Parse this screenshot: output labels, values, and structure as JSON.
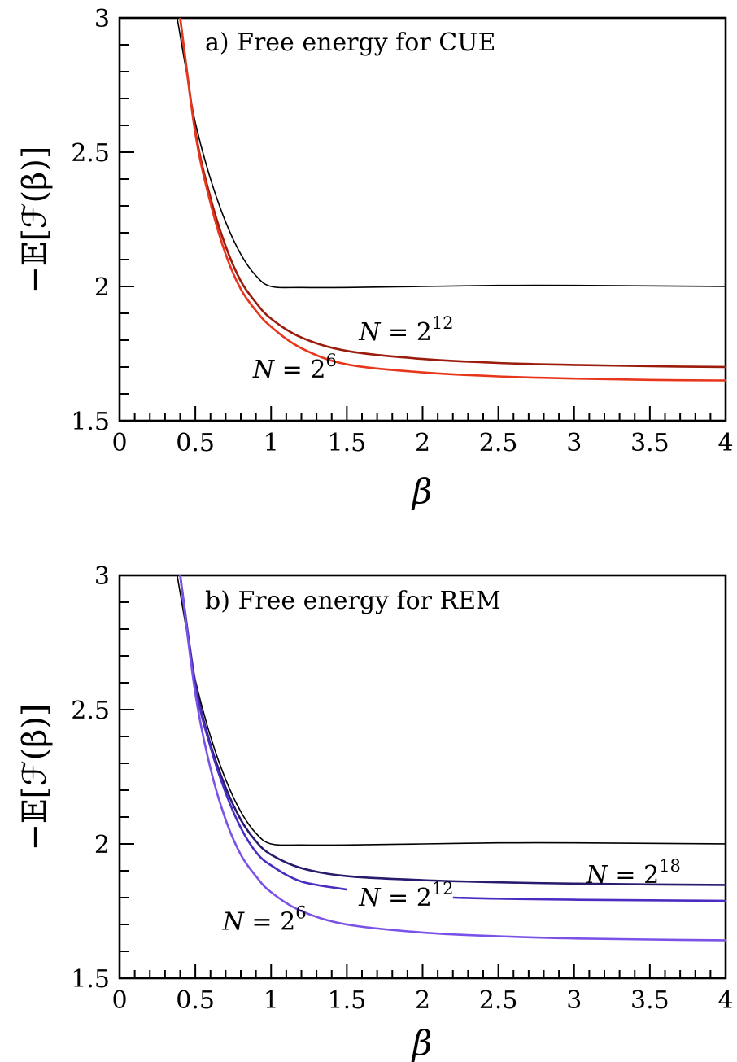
{
  "chart_data": [
    {
      "type": "line",
      "title": "a) Free energy for CUE",
      "xlabel": "β",
      "ylabel": "−𝔼[ℱ(β)]",
      "xlim": [
        0,
        4
      ],
      "ylim": [
        1.5,
        3
      ],
      "xticks": [
        "0",
        "0.5",
        "1",
        "1.5",
        "2",
        "2.5",
        "3",
        "3.5",
        "4"
      ],
      "yticks": [
        "1.5",
        "2",
        "2.5",
        "3"
      ],
      "grid": false,
      "series": [
        {
          "color": "#000000",
          "x": [
            0.38,
            0.45,
            0.5,
            0.6,
            0.7,
            0.8,
            0.9,
            1.0,
            1.2,
            1.5,
            2.0,
            2.5,
            3.0,
            3.5,
            4.0
          ],
          "y": [
            3.0,
            2.77,
            2.61,
            2.4,
            2.24,
            2.12,
            2.04,
            2.0,
            1.996,
            1.996,
            2.0,
            2.004,
            2.004,
            2.002,
            2.0
          ]
        },
        {
          "name": "N = 2^12",
          "color": "#9b1c0c",
          "x": [
            0.4,
            0.5,
            0.6,
            0.7,
            0.8,
            0.9,
            1.0,
            1.2,
            1.5,
            2.0,
            2.5,
            3.0,
            3.5,
            4.0
          ],
          "y": [
            3.0,
            2.58,
            2.33,
            2.15,
            2.02,
            1.94,
            1.88,
            1.81,
            1.76,
            1.73,
            1.715,
            1.708,
            1.703,
            1.7
          ]
        },
        {
          "name": "N = 2^6",
          "color": "#e8361c",
          "x": [
            0.4,
            0.5,
            0.6,
            0.7,
            0.8,
            0.9,
            1.0,
            1.2,
            1.5,
            2.0,
            2.5,
            3.0,
            3.5,
            4.0
          ],
          "y": [
            3.0,
            2.57,
            2.31,
            2.12,
            1.99,
            1.91,
            1.85,
            1.77,
            1.71,
            1.68,
            1.665,
            1.657,
            1.652,
            1.65
          ]
        }
      ],
      "annotations": [
        {
          "base": "N = 2",
          "exp": "12",
          "x": 1.58,
          "y": 1.8
        },
        {
          "base": "N = 2",
          "exp": "6",
          "x": 0.88,
          "y": 1.66
        }
      ]
    },
    {
      "type": "line",
      "title": "b) Free energy for REM",
      "xlabel": "β",
      "ylabel": "−𝔼[ℱ(β)]",
      "xlim": [
        0,
        4
      ],
      "ylim": [
        1.5,
        3
      ],
      "xticks": [
        "0",
        "0.5",
        "1",
        "1.5",
        "2",
        "2.5",
        "3",
        "3.5",
        "4"
      ],
      "yticks": [
        "1.5",
        "2",
        "2.5",
        "3"
      ],
      "grid": false,
      "series": [
        {
          "color": "#000000",
          "x": [
            0.38,
            0.45,
            0.5,
            0.6,
            0.7,
            0.8,
            0.9,
            1.0,
            1.2,
            1.5,
            2.0,
            2.5,
            3.0,
            3.5,
            4.0
          ],
          "y": [
            3.0,
            2.77,
            2.61,
            2.4,
            2.24,
            2.12,
            2.04,
            2.0,
            1.996,
            1.996,
            2.0,
            2.004,
            2.004,
            2.002,
            2.0
          ]
        },
        {
          "name": "N = 2^18",
          "color": "#2a1a6e",
          "x": [
            0.4,
            0.5,
            0.6,
            0.7,
            0.8,
            0.9,
            1.0,
            1.2,
            1.5,
            2.0,
            2.5,
            3.0,
            3.5,
            4.0
          ],
          "y": [
            3.0,
            2.6,
            2.37,
            2.21,
            2.09,
            2.01,
            1.96,
            1.91,
            1.88,
            1.865,
            1.857,
            1.852,
            1.849,
            1.847
          ]
        },
        {
          "name": "N = 2^12",
          "color": "#4a2cc2",
          "x": [
            0.4,
            0.5,
            0.6,
            0.7,
            0.8,
            0.9,
            1.0,
            1.2,
            1.5
          ],
          "y": [
            3.0,
            2.59,
            2.36,
            2.19,
            2.06,
            1.97,
            1.92,
            1.86,
            1.83
          ],
          "x2": [
            2.2,
            2.5,
            3.0,
            3.5,
            4.0
          ],
          "y2": [
            1.8,
            1.796,
            1.792,
            1.79,
            1.788
          ]
        },
        {
          "name": "N = 2^6",
          "color": "#7b52e8",
          "x": [
            0.4,
            0.5,
            0.6,
            0.7,
            0.8,
            0.9,
            1.0,
            1.2,
            1.5,
            2.0,
            2.5,
            3.0,
            3.5,
            4.0
          ],
          "y": [
            3.0,
            2.56,
            2.28,
            2.09,
            1.96,
            1.88,
            1.82,
            1.75,
            1.7,
            1.67,
            1.656,
            1.648,
            1.644,
            1.641
          ]
        }
      ],
      "annotations": [
        {
          "base": "N = 2",
          "exp": "18",
          "x": 3.08,
          "y": 1.855
        },
        {
          "base": "N = 2",
          "exp": "12",
          "x": 1.58,
          "y": 1.77
        },
        {
          "base": "N = 2",
          "exp": "6",
          "x": 0.68,
          "y": 1.68
        }
      ]
    }
  ]
}
